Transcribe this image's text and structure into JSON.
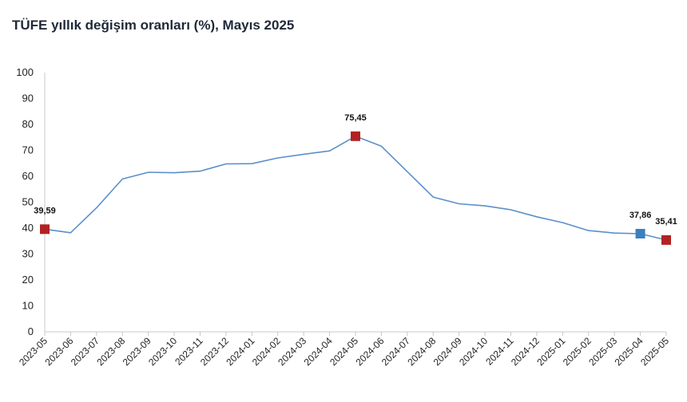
{
  "chart_data": {
    "type": "line",
    "title": "TÜFE yıllık değişim oranları (%), Mayıs 2025",
    "xlabel": "",
    "ylabel": "",
    "ylim": [
      0,
      100
    ],
    "yticks": [
      0,
      10,
      20,
      30,
      40,
      50,
      60,
      70,
      80,
      90,
      100
    ],
    "grid": false,
    "legend": "none",
    "categories": [
      "2023-05",
      "2023-06",
      "2023-07",
      "2023-08",
      "2023-09",
      "2023-10",
      "2023-11",
      "2023-12",
      "2024-01",
      "2024-02",
      "2024-03",
      "2024-04",
      "2024-05",
      "2024-06",
      "2024-07",
      "2024-08",
      "2024-09",
      "2024-10",
      "2024-11",
      "2024-12",
      "2025-01",
      "2025-02",
      "2025-03",
      "2025-04",
      "2025-05"
    ],
    "series": [
      {
        "values": [
          39.59,
          38.21,
          47.83,
          58.94,
          61.53,
          61.36,
          61.98,
          64.77,
          64.86,
          67.07,
          68.5,
          69.8,
          75.45,
          71.6,
          61.78,
          51.97,
          49.38,
          48.58,
          47.09,
          44.38,
          42.12,
          39.05,
          38.1,
          37.86,
          35.41
        ],
        "color": "#5b8fc9"
      }
    ],
    "markers": [
      {
        "index": 0,
        "label": "39,59",
        "color": "#b22222"
      },
      {
        "index": 12,
        "label": "75,45",
        "color": "#b22222"
      },
      {
        "index": 23,
        "label": "37,86",
        "color": "#3a7fbf"
      },
      {
        "index": 24,
        "label": "35,41",
        "color": "#b22222"
      }
    ]
  }
}
